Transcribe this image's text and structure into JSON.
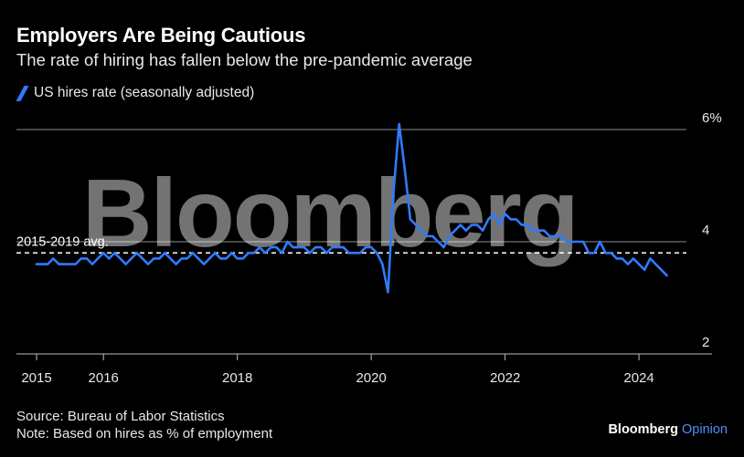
{
  "header": {
    "title": "Employers Are Being Cautious",
    "subtitle": "The rate of hiring has fallen below the pre-pandemic average"
  },
  "legend": {
    "label": "US hires rate (seasonally adjusted)"
  },
  "watermark": "Bloomberg",
  "footer": {
    "source": "Source: Bureau of Labor Statistics",
    "note": "Note: Based on hires as % of employment"
  },
  "brand": {
    "name": "Bloomberg",
    "suffix": "Opinion"
  },
  "colors": {
    "background": "#000000",
    "series": "#2f7bff",
    "grid": "#8c8c8c",
    "text": "#e8e8e8"
  },
  "chart_data": {
    "type": "line",
    "title": "Employers Are Being Cautious",
    "subtitle": "The rate of hiring has fallen below the pre-pandemic average",
    "xlabel": "",
    "ylabel": "",
    "xlim": [
      2015.0,
      2024.9
    ],
    "ylim": [
      2,
      6
    ],
    "y_ticks": [
      {
        "value": 6,
        "label": "6%"
      },
      {
        "value": 4,
        "label": "4"
      },
      {
        "value": 2,
        "label": "2"
      }
    ],
    "x_ticks": [
      {
        "value": 2015,
        "label": "2015"
      },
      {
        "value": 2016,
        "label": "2016"
      },
      {
        "value": 2018,
        "label": "2018"
      },
      {
        "value": 2020,
        "label": "2020"
      },
      {
        "value": 2022,
        "label": "2022"
      },
      {
        "value": 2024,
        "label": "2024"
      }
    ],
    "grid": "horizontal",
    "legend_position": "top-left",
    "reference_line": {
      "label": "2015-2019 avg.",
      "value": 3.8
    },
    "series": [
      {
        "name": "US hires rate (seasonally adjusted)",
        "points": [
          [
            "2015-01",
            3.6
          ],
          [
            "2015-02",
            3.6
          ],
          [
            "2015-03",
            3.6
          ],
          [
            "2015-04",
            3.7
          ],
          [
            "2015-05",
            3.6
          ],
          [
            "2015-06",
            3.6
          ],
          [
            "2015-07",
            3.6
          ],
          [
            "2015-08",
            3.6
          ],
          [
            "2015-09",
            3.7
          ],
          [
            "2015-10",
            3.7
          ],
          [
            "2015-11",
            3.6
          ],
          [
            "2015-12",
            3.7
          ],
          [
            "2016-01",
            3.8
          ],
          [
            "2016-02",
            3.7
          ],
          [
            "2016-03",
            3.8
          ],
          [
            "2016-04",
            3.7
          ],
          [
            "2016-05",
            3.6
          ],
          [
            "2016-06",
            3.7
          ],
          [
            "2016-07",
            3.8
          ],
          [
            "2016-08",
            3.7
          ],
          [
            "2016-09",
            3.6
          ],
          [
            "2016-10",
            3.7
          ],
          [
            "2016-11",
            3.7
          ],
          [
            "2016-12",
            3.8
          ],
          [
            "2017-01",
            3.7
          ],
          [
            "2017-02",
            3.6
          ],
          [
            "2017-03",
            3.7
          ],
          [
            "2017-04",
            3.7
          ],
          [
            "2017-05",
            3.8
          ],
          [
            "2017-06",
            3.7
          ],
          [
            "2017-07",
            3.6
          ],
          [
            "2017-08",
            3.7
          ],
          [
            "2017-09",
            3.8
          ],
          [
            "2017-10",
            3.7
          ],
          [
            "2017-11",
            3.7
          ],
          [
            "2017-12",
            3.8
          ],
          [
            "2018-01",
            3.7
          ],
          [
            "2018-02",
            3.7
          ],
          [
            "2018-03",
            3.8
          ],
          [
            "2018-04",
            3.8
          ],
          [
            "2018-05",
            3.9
          ],
          [
            "2018-06",
            3.8
          ],
          [
            "2018-07",
            3.9
          ],
          [
            "2018-08",
            3.9
          ],
          [
            "2018-09",
            3.8
          ],
          [
            "2018-10",
            4.0
          ],
          [
            "2018-11",
            3.9
          ],
          [
            "2018-12",
            3.9
          ],
          [
            "2019-01",
            3.9
          ],
          [
            "2019-02",
            3.8
          ],
          [
            "2019-03",
            3.9
          ],
          [
            "2019-04",
            3.9
          ],
          [
            "2019-05",
            3.8
          ],
          [
            "2019-06",
            3.9
          ],
          [
            "2019-07",
            3.9
          ],
          [
            "2019-08",
            3.9
          ],
          [
            "2019-09",
            3.8
          ],
          [
            "2019-10",
            3.8
          ],
          [
            "2019-11",
            3.8
          ],
          [
            "2019-12",
            3.9
          ],
          [
            "2020-01",
            3.9
          ],
          [
            "2020-02",
            3.8
          ],
          [
            "2020-03",
            3.6
          ],
          [
            "2020-04",
            3.1
          ],
          [
            "2020-05",
            4.9
          ],
          [
            "2020-06",
            6.1
          ],
          [
            "2020-07",
            5.3
          ],
          [
            "2020-08",
            4.4
          ],
          [
            "2020-09",
            4.3
          ],
          [
            "2020-10",
            4.2
          ],
          [
            "2020-11",
            4.1
          ],
          [
            "2020-12",
            4.1
          ],
          [
            "2021-01",
            4.0
          ],
          [
            "2021-02",
            3.9
          ],
          [
            "2021-03",
            4.1
          ],
          [
            "2021-04",
            4.2
          ],
          [
            "2021-05",
            4.3
          ],
          [
            "2021-06",
            4.2
          ],
          [
            "2021-07",
            4.3
          ],
          [
            "2021-08",
            4.3
          ],
          [
            "2021-09",
            4.2
          ],
          [
            "2021-10",
            4.4
          ],
          [
            "2021-11",
            4.5
          ],
          [
            "2021-12",
            4.3
          ],
          [
            "2022-01",
            4.5
          ],
          [
            "2022-02",
            4.4
          ],
          [
            "2022-03",
            4.4
          ],
          [
            "2022-04",
            4.3
          ],
          [
            "2022-05",
            4.3
          ],
          [
            "2022-06",
            4.2
          ],
          [
            "2022-07",
            4.2
          ],
          [
            "2022-08",
            4.2
          ],
          [
            "2022-09",
            4.1
          ],
          [
            "2022-10",
            4.1
          ],
          [
            "2022-11",
            4.1
          ],
          [
            "2022-12",
            4.0
          ],
          [
            "2023-01",
            4.0
          ],
          [
            "2023-02",
            4.0
          ],
          [
            "2023-03",
            4.0
          ],
          [
            "2023-04",
            3.8
          ],
          [
            "2023-05",
            3.8
          ],
          [
            "2023-06",
            4.0
          ],
          [
            "2023-07",
            3.8
          ],
          [
            "2023-08",
            3.8
          ],
          [
            "2023-09",
            3.7
          ],
          [
            "2023-10",
            3.7
          ],
          [
            "2023-11",
            3.6
          ],
          [
            "2023-12",
            3.7
          ],
          [
            "2024-01",
            3.6
          ],
          [
            "2024-02",
            3.5
          ],
          [
            "2024-03",
            3.7
          ],
          [
            "2024-04",
            3.6
          ],
          [
            "2024-05",
            3.5
          ],
          [
            "2024-06",
            3.4
          ]
        ]
      }
    ]
  }
}
